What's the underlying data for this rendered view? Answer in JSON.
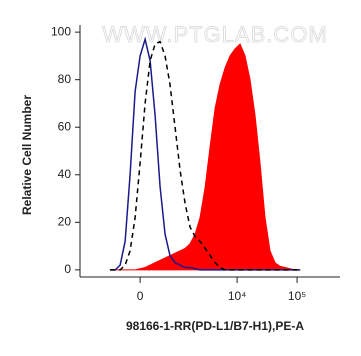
{
  "chart_data": {
    "type": "line",
    "watermark": "WWW.PTGLAB.COM",
    "xlabel": "98166-1-RR(PD-L1/B7-H1),PE-A",
    "ylabel": "Relative Cell Number",
    "xscale": "biexponential",
    "xlim": [
      -2400,
      520000
    ],
    "xticks": [
      0,
      {
        "value": 10000,
        "label": "10⁴"
      },
      {
        "value": 100000,
        "label": "10⁵"
      }
    ],
    "ylim": [
      -3,
      103
    ],
    "yticks": [
      0,
      20,
      40,
      60,
      80,
      100
    ],
    "x": [
      -683,
      -536,
      -407,
      -293,
      -190,
      -93,
      0,
      93,
      190,
      293,
      407,
      536,
      683,
      860,
      1066,
      1312,
      1606,
      1961,
      2386,
      2916,
      3533,
      4284,
      5190,
      6290,
      7615,
      9230,
      11180,
      13550,
      16430,
      19900,
      24100,
      29200,
      35400,
      42900,
      52000,
      63000,
      76200,
      92300,
      111800
    ],
    "series": [
      {
        "color": "#ff0000",
        "fill": true,
        "dashed": false,
        "values": [
          0,
          0,
          0,
          0,
          0,
          0,
          0.5,
          1,
          2,
          3,
          4,
          5,
          6,
          7,
          8,
          9,
          11,
          15,
          22,
          35,
          52,
          68,
          78,
          85,
          90,
          93,
          95,
          90,
          80,
          65,
          45,
          22,
          8,
          3,
          1.5,
          1,
          0.5,
          0,
          0
        ]
      },
      {
        "color": "#1a1a8c",
        "fill": false,
        "dashed": false,
        "values": [
          0,
          0,
          2,
          12,
          40,
          75,
          90,
          97,
          88,
          65,
          35,
          15,
          6,
          3,
          2,
          1,
          1,
          0.5,
          0,
          0,
          0,
          0,
          0,
          0,
          0,
          0,
          0,
          0,
          0,
          0,
          0,
          0,
          0,
          0,
          0,
          0,
          0,
          0,
          0
        ]
      },
      {
        "color": "#000000",
        "fill": false,
        "dashed": true,
        "values": [
          0,
          0,
          0,
          2,
          8,
          22,
          45,
          70,
          88,
          95,
          96,
          90,
          78,
          60,
          42,
          28,
          18,
          14,
          12,
          9,
          6,
          3,
          1,
          0,
          0,
          0,
          0,
          0,
          0,
          0,
          0,
          0,
          0,
          0,
          0,
          0,
          0,
          0,
          0
        ]
      }
    ]
  }
}
